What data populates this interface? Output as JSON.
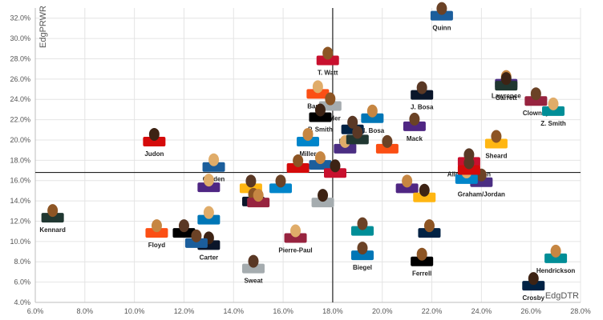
{
  "chart_data": {
    "type": "scatter",
    "title": "",
    "xlabel": "EdgDTR",
    "ylabel": "EdgPRWR",
    "xlim": [
      6.0,
      28.0
    ],
    "ylim": [
      4.0,
      33.0
    ],
    "xticks": [
      "6.0%",
      "8.0%",
      "10.0%",
      "12.0%",
      "14.0%",
      "16.0%",
      "18.0%",
      "20.0%",
      "22.0%",
      "24.0%",
      "26.0%",
      "28.0%"
    ],
    "yticks": [
      "4.0%",
      "6.0%",
      "8.0%",
      "10.0%",
      "12.0%",
      "14.0%",
      "16.0%",
      "18.0%",
      "20.0%",
      "22.0%",
      "24.0%",
      "26.0%",
      "28.0%",
      "30.0%",
      "32.0%"
    ],
    "reference_lines": {
      "x": 18.0,
      "y": 16.8
    },
    "grid": true,
    "legend": "none",
    "marker": "player-headshot",
    "points": [
      {
        "label": "Quinn",
        "x": 22.4,
        "y": 32.4
      },
      {
        "label": "T. Watt",
        "x": 17.8,
        "y": 28.0
      },
      {
        "label": "Lawrence",
        "x": 25.0,
        "y": 25.7
      },
      {
        "label": "Garrett",
        "x": 25.0,
        "y": 25.5
      },
      {
        "label": "Barrett",
        "x": 17.4,
        "y": 24.7
      },
      {
        "label": "J. Bosa",
        "x": 21.6,
        "y": 24.6
      },
      {
        "label": "Clowney",
        "x": 26.2,
        "y": 24.0
      },
      {
        "label": "Fowler",
        "x": 17.9,
        "y": 23.5
      },
      {
        "label": "N. Bosa",
        "x": 19.6,
        "y": 22.3
      },
      {
        "label": "P. Smith",
        "x": 17.5,
        "y": 22.4
      },
      {
        "label": "Z. Smith",
        "x": 26.9,
        "y": 23.0
      },
      {
        "label": "Ngakoue",
        "x": 18.8,
        "y": 21.2
      },
      {
        "label": "Mack",
        "x": 21.3,
        "y": 21.5
      },
      {
        "label": "Sheard",
        "x": 24.6,
        "y": 19.8
      },
      {
        "label": "Miller",
        "x": 17.0,
        "y": 20.0
      },
      {
        "label": "Judon",
        "x": 10.8,
        "y": 20.0
      },
      {
        "label": "Golden",
        "x": 13.2,
        "y": 17.5
      },
      {
        "label": "Allen/Houston",
        "x": 23.5,
        "y": 18.0
      },
      {
        "label": "Graham/Jordan",
        "x": 24.0,
        "y": 16.0
      },
      {
        "label": "Kennard",
        "x": 6.7,
        "y": 12.5
      },
      {
        "label": "Floyd",
        "x": 10.9,
        "y": 11.0
      },
      {
        "label": "Carter",
        "x": 13.0,
        "y": 9.8
      },
      {
        "label": "Pierre-Paul",
        "x": 16.5,
        "y": 10.5
      },
      {
        "label": "Sweat",
        "x": 14.8,
        "y": 7.5
      },
      {
        "label": "Biegel",
        "x": 19.2,
        "y": 8.8
      },
      {
        "label": "Ferrell",
        "x": 21.6,
        "y": 8.2
      },
      {
        "label": "Hendrickson",
        "x": 27.0,
        "y": 8.5
      },
      {
        "label": "Crosby",
        "x": 26.1,
        "y": 5.8
      },
      {
        "label": "",
        "x": 13.0,
        "y": 15.5
      },
      {
        "label": "",
        "x": 14.7,
        "y": 15.4
      },
      {
        "label": "",
        "x": 15.9,
        "y": 15.4
      },
      {
        "label": "",
        "x": 16.6,
        "y": 17.4
      },
      {
        "label": "",
        "x": 17.5,
        "y": 17.7
      },
      {
        "label": "",
        "x": 18.1,
        "y": 16.9
      },
      {
        "label": "",
        "x": 18.5,
        "y": 19.3
      },
      {
        "label": "",
        "x": 19.0,
        "y": 20.2
      },
      {
        "label": "",
        "x": 20.2,
        "y": 19.3
      },
      {
        "label": "",
        "x": 14.8,
        "y": 14.1
      },
      {
        "label": "",
        "x": 15.0,
        "y": 14.0
      },
      {
        "label": "",
        "x": 17.6,
        "y": 14.0
      },
      {
        "label": "",
        "x": 13.0,
        "y": 12.3
      },
      {
        "label": "",
        "x": 12.0,
        "y": 11.0
      },
      {
        "label": "",
        "x": 19.2,
        "y": 11.2
      },
      {
        "label": "",
        "x": 21.9,
        "y": 11.0
      },
      {
        "label": "",
        "x": 21.0,
        "y": 15.4
      },
      {
        "label": "",
        "x": 21.7,
        "y": 14.5
      },
      {
        "label": "",
        "x": 23.4,
        "y": 16.3
      },
      {
        "label": "",
        "x": 23.5,
        "y": 17.2
      },
      {
        "label": "",
        "x": 12.5,
        "y": 10.0
      }
    ]
  }
}
